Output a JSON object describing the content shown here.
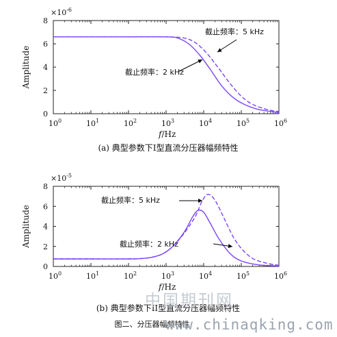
{
  "figure_caption": "图二、分压器幅频特性",
  "watermark": {
    "cn": "中国期刊网",
    "url": "www.chinaqking.com"
  },
  "colors": {
    "series": "#7744ff",
    "axis": "#222222",
    "text": "#111111"
  },
  "chart_data": [
    {
      "type": "line",
      "caption": "(a) 典型参数下I型直流分压器幅频特性",
      "ylabel": "Amplitude",
      "xlabel_italic": "f",
      "xlabel_unit": "/Hz",
      "xscale": "log",
      "xlim": [
        1,
        1000000
      ],
      "ylim": [
        0,
        8
      ],
      "y_multiplier": "×10",
      "y_multiplier_exp": "-6",
      "x_ticks": [
        {
          "base": "10",
          "exp": "0",
          "value": 1
        },
        {
          "base": "10",
          "exp": "1",
          "value": 10
        },
        {
          "base": "10",
          "exp": "2",
          "value": 100
        },
        {
          "base": "10",
          "exp": "3",
          "value": 1000
        },
        {
          "base": "10",
          "exp": "4",
          "value": 10000
        },
        {
          "base": "10",
          "exp": "5",
          "value": 100000
        },
        {
          "base": "10",
          "exp": "6",
          "value": 1000000
        }
      ],
      "y_ticks": [
        "0",
        "2",
        "4",
        "6",
        "8"
      ],
      "series": [
        {
          "style": "solid",
          "cutoff_hz": 2000,
          "x": [
            1,
            10,
            100,
            1000,
            2000,
            4000,
            8000,
            15000,
            30000,
            60000,
            120000,
            300000,
            1000000
          ],
          "y": [
            6.6,
            6.6,
            6.6,
            6.6,
            6.5,
            6.0,
            5.0,
            3.8,
            2.4,
            1.4,
            0.8,
            0.35,
            0.1
          ]
        },
        {
          "style": "dashed",
          "cutoff_hz": 5000,
          "x": [
            1,
            10,
            100,
            1000,
            3000,
            6000,
            12000,
            25000,
            50000,
            100000,
            200000,
            500000,
            1000000
          ],
          "y": [
            6.6,
            6.6,
            6.6,
            6.6,
            6.5,
            6.1,
            5.2,
            3.9,
            2.6,
            1.5,
            0.8,
            0.35,
            0.18
          ]
        }
      ],
      "annotations": [
        {
          "text": "截止频率：2 kHz"
        },
        {
          "text": "截止频率：5 kHz"
        }
      ]
    },
    {
      "type": "line",
      "caption": "(b) 典型参数下II型直流分压器幅频特性",
      "ylabel": "Amplitude",
      "xlabel_italic": "f",
      "xlabel_unit": "/Hz",
      "xscale": "log",
      "xlim": [
        1,
        1000000
      ],
      "ylim": [
        0,
        8
      ],
      "y_multiplier": "×10",
      "y_multiplier_exp": "-5",
      "x_ticks": [
        {
          "base": "10",
          "exp": "0",
          "value": 1
        },
        {
          "base": "10",
          "exp": "1",
          "value": 10
        },
        {
          "base": "10",
          "exp": "2",
          "value": 100
        },
        {
          "base": "10",
          "exp": "3",
          "value": 1000
        },
        {
          "base": "10",
          "exp": "4",
          "value": 10000
        },
        {
          "base": "10",
          "exp": "5",
          "value": 100000
        },
        {
          "base": "10",
          "exp": "6",
          "value": 1000000
        }
      ],
      "y_ticks": [
        "0",
        "2",
        "4",
        "6",
        "8"
      ],
      "series": [
        {
          "style": "solid",
          "cutoff_hz": 2000,
          "x": [
            1,
            10,
            100,
            200,
            400,
            800,
            1500,
            3000,
            5000,
            7000,
            10000,
            15000,
            25000,
            50000,
            100000,
            300000,
            1000000
          ],
          "y": [
            0.75,
            0.75,
            0.75,
            0.78,
            0.9,
            1.25,
            2.0,
            3.4,
            4.9,
            5.6,
            5.4,
            4.3,
            2.8,
            1.3,
            0.55,
            0.15,
            0.04
          ]
        },
        {
          "style": "dashed",
          "cutoff_hz": 5000,
          "x": [
            1,
            10,
            100,
            200,
            400,
            800,
            1500,
            3000,
            6000,
            9000,
            13000,
            20000,
            35000,
            60000,
            100000,
            200000,
            500000,
            1000000
          ],
          "y": [
            0.75,
            0.75,
            0.75,
            0.78,
            0.9,
            1.25,
            2.0,
            3.3,
            5.0,
            6.5,
            7.2,
            6.6,
            4.8,
            3.0,
            1.8,
            0.8,
            0.3,
            0.12
          ]
        }
      ],
      "annotations": [
        {
          "text": "截止频率：5 kHz"
        },
        {
          "text": "截止频率：2 kHz"
        }
      ]
    }
  ]
}
